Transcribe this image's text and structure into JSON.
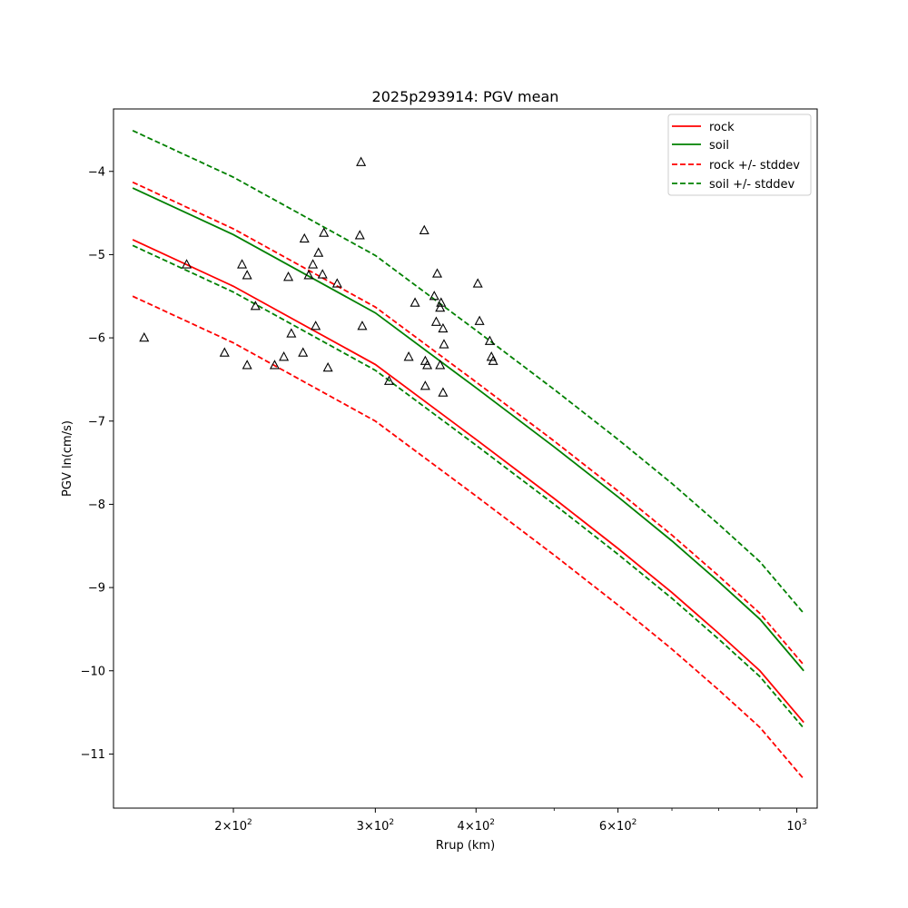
{
  "chart_data": {
    "type": "scatter",
    "title": "2025p293914: PGV mean",
    "xlabel": "Rrup (km)",
    "ylabel": "PGV ln(cm/s)",
    "xscale": "log",
    "xlim": [
      142,
      1060
    ],
    "ylim": [
      -11.65,
      -3.25
    ],
    "x_ticks": [
      {
        "value": 200,
        "base": "2",
        "exp": "2"
      },
      {
        "value": 300,
        "base": "3",
        "exp": "2"
      },
      {
        "value": 400,
        "base": "4",
        "exp": "2"
      },
      {
        "value": 600,
        "base": "6",
        "exp": "2"
      },
      {
        "value": 1000,
        "base": "10",
        "exp": "3"
      }
    ],
    "x_minor_ticks": [
      500,
      700,
      800,
      900
    ],
    "y_ticks": [
      -4,
      -5,
      -6,
      -7,
      -8,
      -9,
      -10,
      -11
    ],
    "y_tick_labels": [
      "−4",
      "−5",
      "−6",
      "−7",
      "−8",
      "−9",
      "−10",
      "−11"
    ],
    "grid": false,
    "legend_position": "top-right",
    "legend": [
      "rock",
      "soil",
      "rock +/- stddev",
      "soil +/- stddev"
    ],
    "series": [
      {
        "name": "rock",
        "style": "solid",
        "color": "#ff0000",
        "x": [
          150,
          200,
          300,
          400,
          500,
          600,
          700,
          800,
          900,
          1020
        ],
        "y": [
          -4.82,
          -5.38,
          -6.32,
          -7.22,
          -7.93,
          -8.53,
          -9.06,
          -9.55,
          -10.0,
          -10.62
        ]
      },
      {
        "name": "soil",
        "style": "solid",
        "color": "#008000",
        "x": [
          150,
          200,
          300,
          400,
          500,
          600,
          700,
          800,
          900,
          1020
        ],
        "y": [
          -4.2,
          -4.76,
          -5.7,
          -6.6,
          -7.31,
          -7.91,
          -8.44,
          -8.93,
          -9.38,
          -10.0
        ]
      },
      {
        "name": "rock +/- stddev",
        "style": "dashed",
        "color": "#ff0000",
        "x": [
          150,
          200,
          300,
          400,
          500,
          600,
          700,
          800,
          900,
          1020
        ],
        "y": [
          -4.13,
          -4.69,
          -5.63,
          -6.53,
          -7.24,
          -7.84,
          -8.37,
          -8.86,
          -9.31,
          -9.93
        ]
      },
      {
        "name": "rock +/- stddev",
        "style": "dashed",
        "color": "#ff0000",
        "x": [
          150,
          200,
          300,
          400,
          500,
          600,
          700,
          800,
          900,
          1020
        ],
        "y": [
          -5.5,
          -6.06,
          -7.0,
          -7.9,
          -8.61,
          -9.21,
          -9.74,
          -10.23,
          -10.68,
          -11.3
        ]
      },
      {
        "name": "soil +/- stddev",
        "style": "dashed",
        "color": "#008000",
        "x": [
          150,
          200,
          300,
          400,
          500,
          600,
          700,
          800,
          900,
          1020
        ],
        "y": [
          -3.51,
          -4.07,
          -5.01,
          -5.91,
          -6.62,
          -7.22,
          -7.75,
          -8.24,
          -8.69,
          -9.31
        ]
      },
      {
        "name": "soil +/- stddev",
        "style": "dashed",
        "color": "#008000",
        "x": [
          150,
          200,
          300,
          400,
          500,
          600,
          700,
          800,
          900,
          1020
        ],
        "y": [
          -4.89,
          -5.45,
          -6.39,
          -7.29,
          -8.0,
          -8.6,
          -9.13,
          -9.62,
          -10.07,
          -10.69
        ]
      }
    ],
    "observations": {
      "marker": "triangle-open",
      "color": "#000000",
      "x": [
        155,
        175,
        195,
        205,
        208,
        208,
        213,
        225,
        231,
        234,
        236,
        244,
        245,
        248,
        251,
        253,
        255,
        258,
        259,
        262,
        269,
        287,
        288,
        289,
        312,
        330,
        336,
        345,
        346,
        346,
        348,
        355,
        357,
        358,
        361,
        361,
        362,
        364,
        364,
        365,
        402,
        404,
        416,
        418,
        420
      ],
      "y": [
        -6.0,
        -5.12,
        -6.18,
        -5.12,
        -6.33,
        -5.25,
        -5.62,
        -6.33,
        -6.23,
        -5.27,
        -5.95,
        -6.18,
        -4.81,
        -5.25,
        -5.12,
        -5.86,
        -4.98,
        -5.24,
        -4.74,
        -6.36,
        -5.35,
        -4.77,
        -3.89,
        -5.86,
        -6.52,
        -6.23,
        -5.58,
        -4.71,
        -6.28,
        -6.58,
        -6.33,
        -5.5,
        -5.81,
        -5.23,
        -5.64,
        -6.33,
        -5.58,
        -6.66,
        -5.89,
        -6.08,
        -5.35,
        -5.8,
        -6.04,
        -6.23,
        -6.28
      ]
    }
  }
}
